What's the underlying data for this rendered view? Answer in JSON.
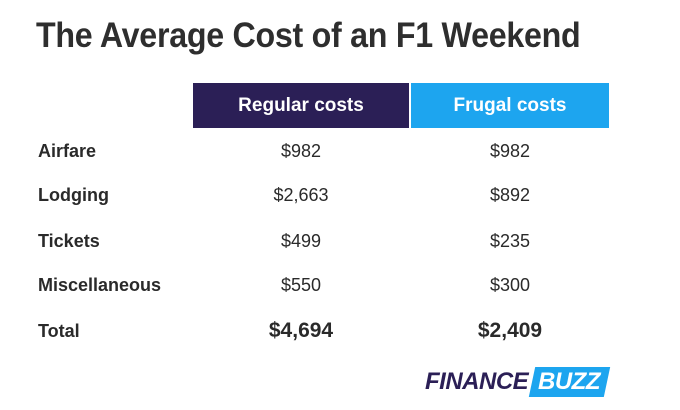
{
  "title": "The Average Cost of an F1 Weekend",
  "columns": {
    "regular": "Regular costs",
    "frugal": "Frugal costs"
  },
  "rows": [
    {
      "label": "Airfare",
      "regular": "$982",
      "frugal": "$982"
    },
    {
      "label": "Lodging",
      "regular": "$2,663",
      "frugal": "$892"
    },
    {
      "label": "Tickets",
      "regular": "$499",
      "frugal": "$235"
    },
    {
      "label": "Miscellaneous",
      "regular": "$550",
      "frugal": "$300"
    },
    {
      "label": "Total",
      "regular": "$4,694",
      "frugal": "$2,409"
    }
  ],
  "logo": {
    "word1": "FINANCE",
    "word2": "BUZZ"
  },
  "colors": {
    "regular_header": "#2b1f56",
    "frugal_header": "#1da5ef"
  }
}
